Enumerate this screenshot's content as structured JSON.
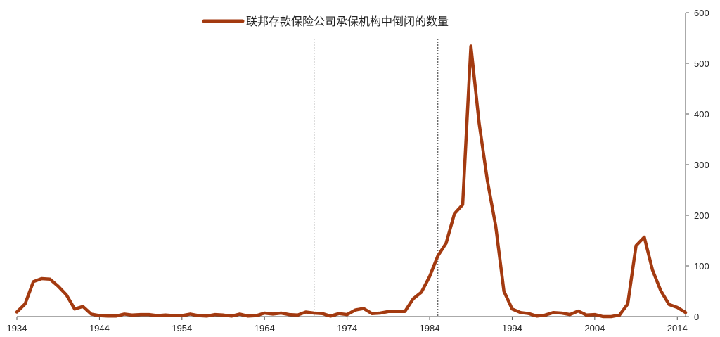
{
  "chart_data": {
    "type": "line",
    "title": "",
    "xlabel": "",
    "ylabel": "",
    "legend": "top-center",
    "grid": false,
    "xlim": [
      1934,
      2015
    ],
    "ylim": [
      0,
      600
    ],
    "x_ticks": [
      1934,
      1944,
      1954,
      1964,
      1974,
      1984,
      1994,
      2004,
      2014
    ],
    "y_ticks": [
      0,
      100,
      200,
      300,
      400,
      500,
      600
    ],
    "y_axis_side": "right",
    "reference_lines_x": [
      1970,
      1985
    ],
    "series": [
      {
        "name": "联邦存款保险公司承保机构中倒闭的数量",
        "color": "#a33a10",
        "x": [
          1934,
          1935,
          1936,
          1937,
          1938,
          1939,
          1940,
          1941,
          1942,
          1943,
          1944,
          1945,
          1946,
          1947,
          1948,
          1949,
          1950,
          1951,
          1952,
          1953,
          1954,
          1955,
          1956,
          1957,
          1958,
          1959,
          1960,
          1961,
          1962,
          1963,
          1964,
          1965,
          1966,
          1967,
          1968,
          1969,
          1970,
          1971,
          1972,
          1973,
          1974,
          1975,
          1976,
          1977,
          1978,
          1979,
          1980,
          1981,
          1982,
          1983,
          1984,
          1985,
          1986,
          1987,
          1988,
          1989,
          1990,
          1991,
          1992,
          1993,
          1994,
          1995,
          1996,
          1997,
          1998,
          1999,
          2000,
          2001,
          2002,
          2003,
          2004,
          2005,
          2006,
          2007,
          2008,
          2009,
          2010,
          2011,
          2012,
          2013,
          2014,
          2015
        ],
        "values": [
          9,
          25,
          69,
          75,
          74,
          60,
          43,
          15,
          20,
          5,
          2,
          1,
          1,
          5,
          3,
          4,
          4,
          2,
          3,
          2,
          2,
          5,
          2,
          1,
          4,
          3,
          1,
          5,
          1,
          2,
          7,
          5,
          7,
          4,
          3,
          9,
          7,
          6,
          1,
          6,
          4,
          13,
          16,
          6,
          7,
          10,
          10,
          10,
          35,
          48,
          79,
          120,
          145,
          203,
          221,
          534,
          381,
          268,
          179,
          50,
          15,
          8,
          6,
          1,
          3,
          8,
          7,
          4,
          11,
          3,
          4,
          0,
          0,
          3,
          25,
          140,
          157,
          92,
          51,
          24,
          18,
          8
        ]
      }
    ]
  }
}
